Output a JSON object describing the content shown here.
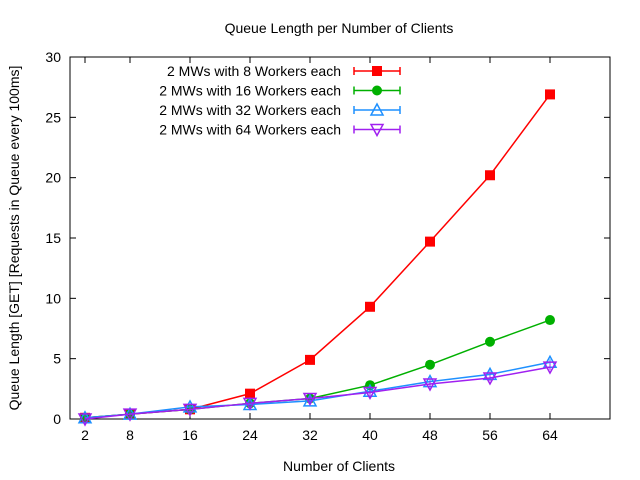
{
  "chart_data": {
    "type": "line",
    "title": "Queue Length per Number of Clients",
    "xlabel": "Number of Clients",
    "ylabel": "Queue Length [GET] [Requests in Queue every 100ms]",
    "x_ticks": [
      "2",
      "8",
      "16",
      "24",
      "32",
      "40",
      "48",
      "56",
      "64"
    ],
    "x": [
      2,
      8,
      16,
      24,
      32,
      40,
      48,
      56,
      64
    ],
    "xlim": [
      0,
      72
    ],
    "ylim": [
      0,
      30
    ],
    "y_ticks": [
      "0",
      "5",
      "10",
      "15",
      "20",
      "25",
      "30"
    ],
    "grid": false,
    "legend_position": "top-left",
    "series": [
      {
        "name": "2 MWs with 8 Workers each",
        "color": "#ff0000",
        "marker": "filled-square",
        "values": [
          0.1,
          0.4,
          0.8,
          2.1,
          4.9,
          9.3,
          14.7,
          20.2,
          26.9
        ]
      },
      {
        "name": "2 MWs with 16 Workers each",
        "color": "#00b000",
        "marker": "filled-circle",
        "values": [
          0.1,
          0.4,
          0.8,
          1.3,
          1.7,
          2.8,
          4.5,
          6.4,
          8.2
        ]
      },
      {
        "name": "2 MWs with 32 Workers each",
        "color": "#1e90ff",
        "marker": "open-triangle-up",
        "values": [
          0.1,
          0.4,
          1.0,
          1.2,
          1.5,
          2.3,
          3.1,
          3.7,
          4.7
        ]
      },
      {
        "name": "2 MWs with 64 Workers each",
        "color": "#a020f0",
        "marker": "open-triangle-down",
        "values": [
          0.0,
          0.4,
          0.8,
          1.3,
          1.7,
          2.2,
          2.9,
          3.4,
          4.3
        ]
      }
    ]
  }
}
